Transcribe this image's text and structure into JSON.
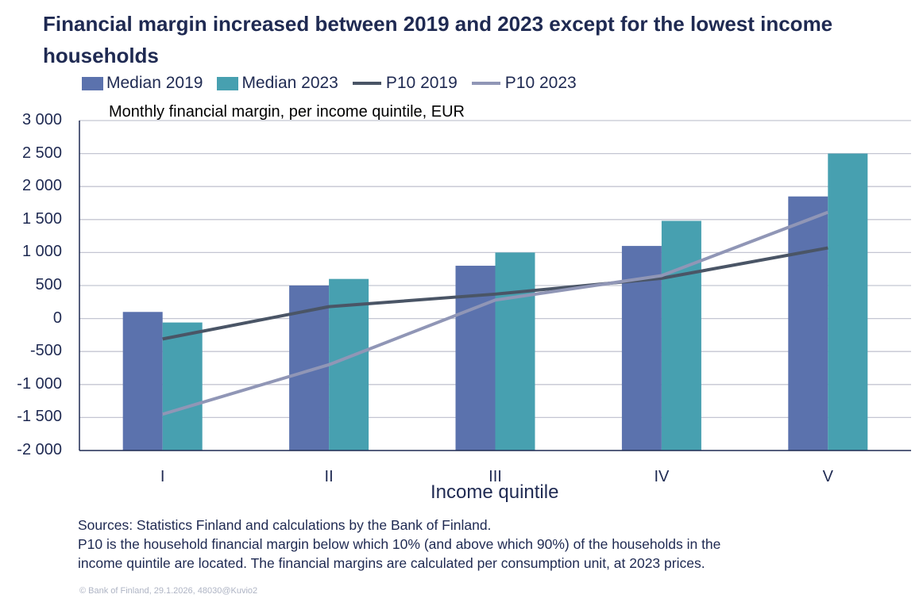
{
  "chart_data": {
    "type": "bar",
    "title": "Financial margin increased between 2019 and 2023 except for the lowest income households",
    "subtitle": "Monthly financial margin, per income quintile, EUR",
    "xlabel": "Income quintile",
    "ylabel": "",
    "categories": [
      "I",
      "II",
      "III",
      "IV",
      "V"
    ],
    "ylim": [
      -2000,
      3000
    ],
    "yticks": [
      3000,
      2500,
      2000,
      1500,
      1000,
      500,
      0,
      -500,
      -1000,
      -1500,
      -2000
    ],
    "ytick_labels": [
      "3 000",
      "2 500",
      "2 000",
      "1 500",
      "1 000",
      "500",
      "0",
      "-500",
      "-1 000",
      "-1 500",
      "-2 000"
    ],
    "grid": true,
    "legend_position": "top",
    "series": [
      {
        "name": "Median 2019",
        "kind": "bar",
        "color": "#5b72ad",
        "values": [
          100,
          500,
          800,
          1100,
          1850
        ]
      },
      {
        "name": "Median 2023",
        "kind": "bar",
        "color": "#47a0b0",
        "values": [
          -60,
          600,
          1000,
          1480,
          2500
        ]
      },
      {
        "name": "P10 2019",
        "kind": "line",
        "color": "#4a5566",
        "values": [
          -310,
          180,
          370,
          610,
          1070
        ]
      },
      {
        "name": "P10 2023",
        "kind": "line",
        "color": "#9096b6",
        "values": [
          -1450,
          -700,
          280,
          650,
          1610
        ]
      }
    ]
  },
  "notes": {
    "sources": "Sources: Statistics Finland and calculations by the Bank of Finland.",
    "line2": "P10 is the household financial margin below which 10% (and above which 90%) of the households in the",
    "line3": "income quintile are located. The financial margins are calculated per consumption unit, at 2023 prices."
  },
  "copyright": "© Bank of Finland, 29.1.2026, 48030@Kuvio2"
}
